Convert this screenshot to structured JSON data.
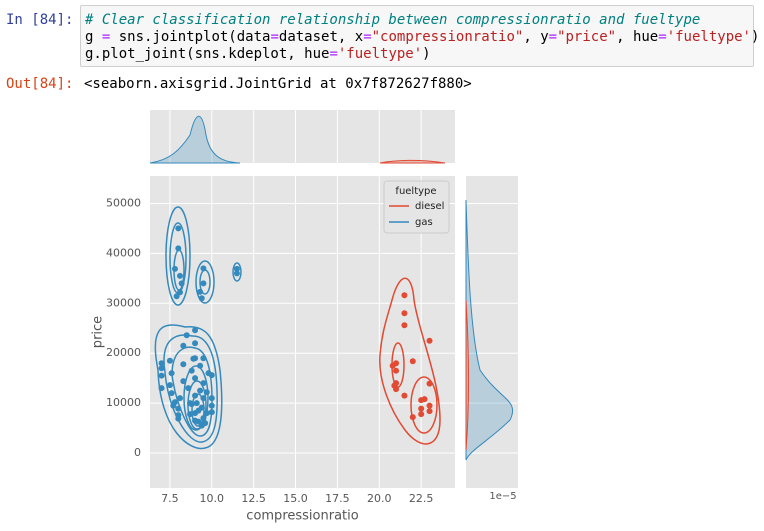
{
  "cell": {
    "prompt": "In [84]:",
    "code": [
      [
        {
          "text": "# Clear classification relationship between compressionratio and fueltype",
          "color": "#008080",
          "italic": true
        }
      ],
      [
        {
          "text": "g ",
          "color": "#000000"
        },
        {
          "text": "=",
          "color": "#aa22ff"
        },
        {
          "text": " sns.jointplot(data",
          "color": "#000000"
        },
        {
          "text": "=",
          "color": "#aa22ff"
        },
        {
          "text": "dataset, x",
          "color": "#000000"
        },
        {
          "text": "=",
          "color": "#aa22ff"
        },
        {
          "text": "\"compressionratio\"",
          "color": "#ba2121"
        },
        {
          "text": ", y",
          "color": "#000000"
        },
        {
          "text": "=",
          "color": "#aa22ff"
        },
        {
          "text": "\"price\"",
          "color": "#ba2121"
        },
        {
          "text": ", hue",
          "color": "#000000"
        },
        {
          "text": "=",
          "color": "#aa22ff"
        },
        {
          "text": "'fueltype'",
          "color": "#ba2121"
        },
        {
          "text": ")",
          "color": "#000000"
        }
      ],
      [
        {
          "text": "g.plot_joint(sns.kdeplot, hue",
          "color": "#000000"
        },
        {
          "text": "=",
          "color": "#aa22ff"
        },
        {
          "text": "'fueltype'",
          "color": "#ba2121"
        },
        {
          "text": ")",
          "color": "#000000"
        }
      ]
    ]
  },
  "output": {
    "prompt": "Out[84]:",
    "text": "<seaborn.axisgrid.JointGrid at 0x7f872627f880>"
  },
  "chart_data": {
    "type": "scatter",
    "xlabel": "compressionratio",
    "ylabel": "price",
    "xlim": [
      6.31,
      24.52
    ],
    "ylim": [
      -7000,
      55500
    ],
    "xticks": [
      7.5,
      {
        "value": 10,
        "label": "10.0"
      },
      12.5,
      {
        "value": 15,
        "label": "15.0"
      },
      17.5,
      {
        "value": 20,
        "label": "20.0"
      },
      22.5
    ],
    "yticks": [
      0,
      10000,
      20000,
      30000,
      40000,
      50000
    ],
    "marginal_offset_text": "1e−5",
    "grid": true,
    "legend_title": "fueltype",
    "legend_position": "upper right",
    "series": [
      {
        "name": "diesel",
        "color": "#e24a33",
        "x": [
          21.5,
          21.5,
          21.5,
          23,
          21,
          22,
          21,
          20.8,
          21,
          20.9,
          23,
          22.5,
          22.7,
          23,
          22,
          22.5,
          23,
          21.5,
          21,
          22.5
        ],
        "values": [
          31600,
          28000,
          25600,
          22500,
          18000,
          18400,
          16500,
          17500,
          14000,
          13500,
          13900,
          10600,
          10800,
          9500,
          7200,
          7800,
          8400,
          11500,
          12800,
          8900
        ]
      },
      {
        "name": "gas",
        "color": "#348abd",
        "x": [
          8,
          8,
          7.8,
          8.1,
          8.1,
          7.9,
          8.2,
          9.5,
          9.5,
          9.4,
          9.3,
          11.5,
          11.5,
          7,
          7,
          7,
          7,
          7.5,
          7.6,
          7.5,
          7.6,
          7.7,
          7.8,
          8,
          8,
          8,
          8.1,
          8.3,
          8.3,
          8.3,
          8.5,
          8.6,
          8.7,
          8.7,
          8.8,
          8.8,
          8.9,
          9,
          9,
          9,
          9,
          9,
          9,
          9.1,
          9.2,
          9.2,
          9.3,
          9.3,
          9.4,
          9.4,
          9.5,
          9.5,
          9.5,
          9.5,
          9.6,
          9.7,
          9.7,
          9.8,
          10,
          10,
          10,
          10,
          9
        ],
        "values": [
          45000,
          41000,
          36900,
          35500,
          32200,
          31400,
          34000,
          37000,
          34000,
          31000,
          32300,
          36000,
          36900,
          18000,
          15500,
          13000,
          17000,
          18500,
          16000,
          13600,
          12000,
          9500,
          10200,
          8900,
          7600,
          6900,
          11000,
          17800,
          14400,
          21500,
          23600,
          13000,
          10000,
          7800,
          9800,
          16500,
          18900,
          6500,
          8000,
          11500,
          15000,
          19000,
          24600,
          10000,
          6300,
          8500,
          12500,
          17500,
          5500,
          9100,
          7000,
          11000,
          14000,
          19000,
          6000,
          8000,
          12200,
          16000,
          9500,
          11000,
          15600,
          8200,
          22000
        ]
      }
    ]
  }
}
